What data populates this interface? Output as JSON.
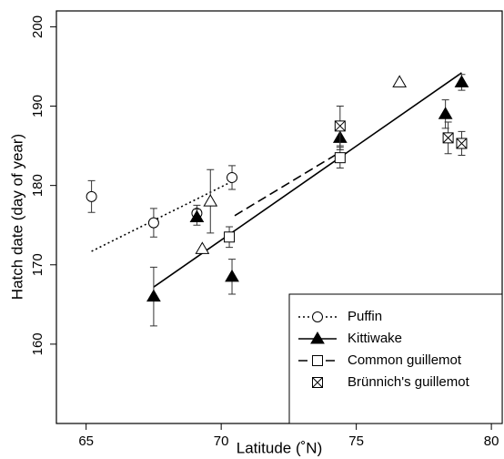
{
  "chart_data": {
    "type": "scatter",
    "xlabel": "Latitude (˚N)",
    "ylabel": "Hatch date (day of year)",
    "xlim": [
      63.9,
      80.4
    ],
    "ylim": [
      150,
      202
    ],
    "xticks": [
      65,
      70,
      75,
      80
    ],
    "yticks": [
      160,
      170,
      180,
      190,
      200
    ],
    "legend": "lower right",
    "series": [
      {
        "name": "Puffin",
        "color": "#000000",
        "marker": "circle",
        "line": "dotted",
        "x": [
          65.2,
          67.5,
          69.1,
          70.4
        ],
        "values": [
          178.6,
          175.3,
          176.5,
          181.0
        ],
        "errors": [
          2.0,
          1.8,
          1.0,
          1.5
        ],
        "fit": {
          "x": [
            65.2,
            70.4
          ],
          "y": [
            171.7,
            180.5
          ]
        }
      },
      {
        "name": "Kittiwake",
        "color": "#000000",
        "marker": "triangle-filled",
        "line": "solid",
        "x": [
          67.5,
          69.1,
          70.4,
          74.4,
          78.3,
          78.9
        ],
        "values": [
          166.0,
          176.0,
          168.5,
          186.0,
          189.0,
          193.0
        ],
        "errors": [
          3.7,
          1.0,
          2.2,
          1.5,
          1.8,
          1.0
        ],
        "fit": {
          "x": [
            67.5,
            78.9
          ],
          "y": [
            167.2,
            194.2
          ]
        }
      },
      {
        "color": "#000000",
        "marker": "triangle-open",
        "x": [
          69.3,
          69.6,
          76.6
        ],
        "values": [
          172.0,
          178.0,
          193.0
        ],
        "errors": [
          null,
          4.0,
          null
        ]
      },
      {
        "name": "Common guillemot",
        "color": "#000000",
        "marker": "square",
        "line": "dashed",
        "x": [
          70.3,
          74.4
        ],
        "values": [
          173.5,
          183.5
        ],
        "errors": [
          1.3,
          1.3
        ],
        "fit": {
          "x": [
            70.5,
            74.4
          ],
          "y": [
            176.2,
            184.2
          ]
        }
      },
      {
        "name": "Brünnich's guillemot",
        "color": "#000000",
        "marker": "square-x",
        "x": [
          74.4,
          78.4,
          78.9
        ],
        "values": [
          187.5,
          186.0,
          185.3
        ],
        "errors": [
          2.5,
          2.0,
          1.5
        ]
      }
    ]
  }
}
